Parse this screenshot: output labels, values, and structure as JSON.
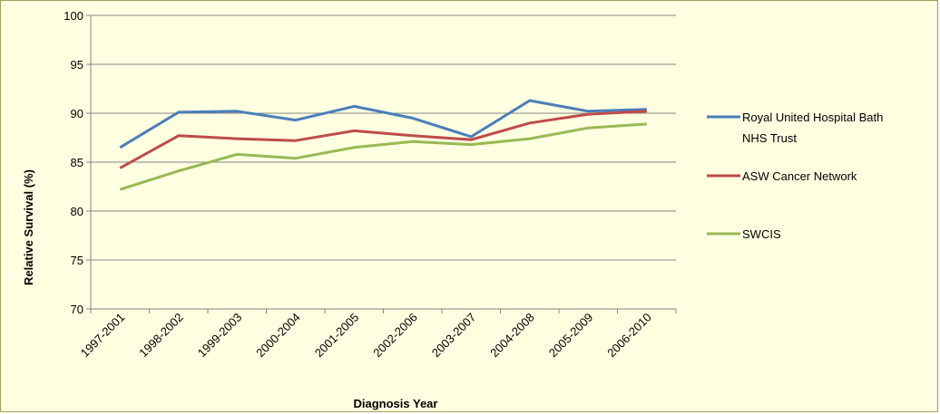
{
  "chart_data": {
    "type": "line",
    "title": "",
    "xlabel": "Diagnosis Year",
    "ylabel": "Relative Survival (%)",
    "ylim": [
      70,
      100
    ],
    "yticks": [
      70,
      75,
      80,
      85,
      90,
      95,
      100
    ],
    "grid": true,
    "legend_position": "right",
    "categories": [
      "1997-2001",
      "1998-2002",
      "1999-2003",
      "2000-2004",
      "2001-2005",
      "2002-2006",
      "2003-2007",
      "2004-2008",
      "2005-2009",
      "2006-2010"
    ],
    "series": [
      {
        "name": "Royal United Hospital Bath NHS Trust",
        "legend_lines": [
          "Royal United Hospital Bath",
          "NHS Trust"
        ],
        "color": "#4a7ebb",
        "values": [
          86.5,
          90.1,
          90.2,
          89.3,
          90.7,
          89.5,
          87.6,
          91.3,
          90.2,
          90.4
        ]
      },
      {
        "name": "ASW Cancer Network",
        "legend_lines": [
          "ASW Cancer Network"
        ],
        "color": "#be4b48",
        "values": [
          84.4,
          87.7,
          87.4,
          87.2,
          88.2,
          87.7,
          87.3,
          89.0,
          89.9,
          90.2
        ]
      },
      {
        "name": "SWCIS",
        "legend_lines": [
          "SWCIS"
        ],
        "color": "#98b954",
        "values": [
          82.2,
          84.1,
          85.8,
          85.4,
          86.5,
          87.1,
          86.8,
          87.4,
          88.5,
          88.9
        ]
      }
    ]
  }
}
